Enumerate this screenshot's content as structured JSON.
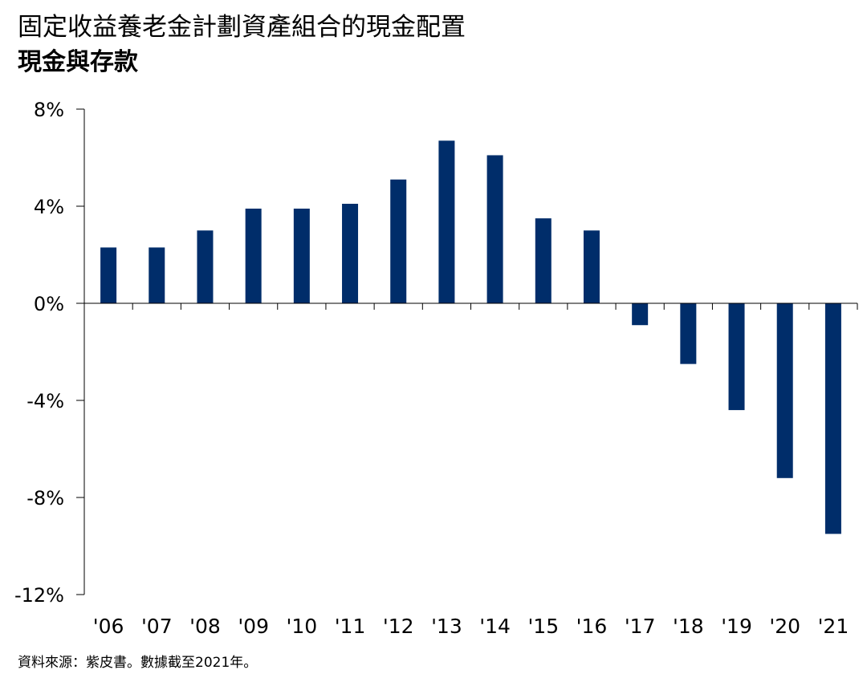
{
  "chart_data": {
    "type": "bar",
    "title": "固定收益養老金計劃資產組合的現金配置",
    "subtitle": "現金與存款",
    "categories": [
      "'06",
      "'07",
      "'08",
      "'09",
      "'10",
      "'11",
      "'12",
      "'13",
      "'14",
      "'15",
      "'16",
      "'17",
      "'18",
      "'19",
      "'20",
      "'21"
    ],
    "series": [
      {
        "values": [
          2.3,
          2.3,
          3.0,
          3.9,
          3.9,
          4.1,
          5.1,
          6.7,
          6.1,
          3.5,
          3.0,
          -0.9,
          -2.5,
          -4.4,
          -7.2,
          -9.5
        ]
      }
    ],
    "ylim": [
      -12,
      8
    ],
    "yticks": [
      8,
      4,
      0,
      -4,
      -8,
      -12
    ],
    "ytick_labels": [
      "8%",
      "4%",
      "0%",
      "-4%",
      "-8%",
      "-12%"
    ],
    "bar_color": "#002D6A",
    "grid": false,
    "source": "資料來源：紫皮書。數據截至2021年。"
  }
}
